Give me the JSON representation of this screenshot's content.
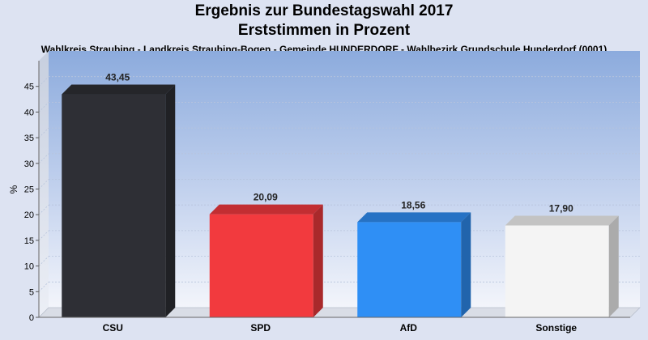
{
  "chart_data": {
    "type": "bar",
    "title": "Ergebnis zur Bundestagswahl 2017",
    "title_line2": "Erststimmen in Prozent",
    "subtitle": "Wahlkreis Straubing - Landkreis Straubing-Bogen - Gemeinde HUNDERDORF - Wahlbezirk Grundschule Hunderdorf (0001)",
    "ylabel": "%",
    "xlabel": "",
    "ylim": [
      0,
      50
    ],
    "yticks": [
      0,
      5,
      10,
      15,
      20,
      25,
      30,
      35,
      40,
      45
    ],
    "grid": true,
    "categories": [
      "CSU",
      "SPD",
      "AfD",
      "Sonstige"
    ],
    "values": [
      43.45,
      20.09,
      18.56,
      17.9
    ],
    "value_labels": [
      "43,45",
      "20,09",
      "18,56",
      "17,90"
    ],
    "colors": [
      "#2e2f35",
      "#f23a3e",
      "#2f8ff5",
      "#f4f4f4"
    ]
  }
}
